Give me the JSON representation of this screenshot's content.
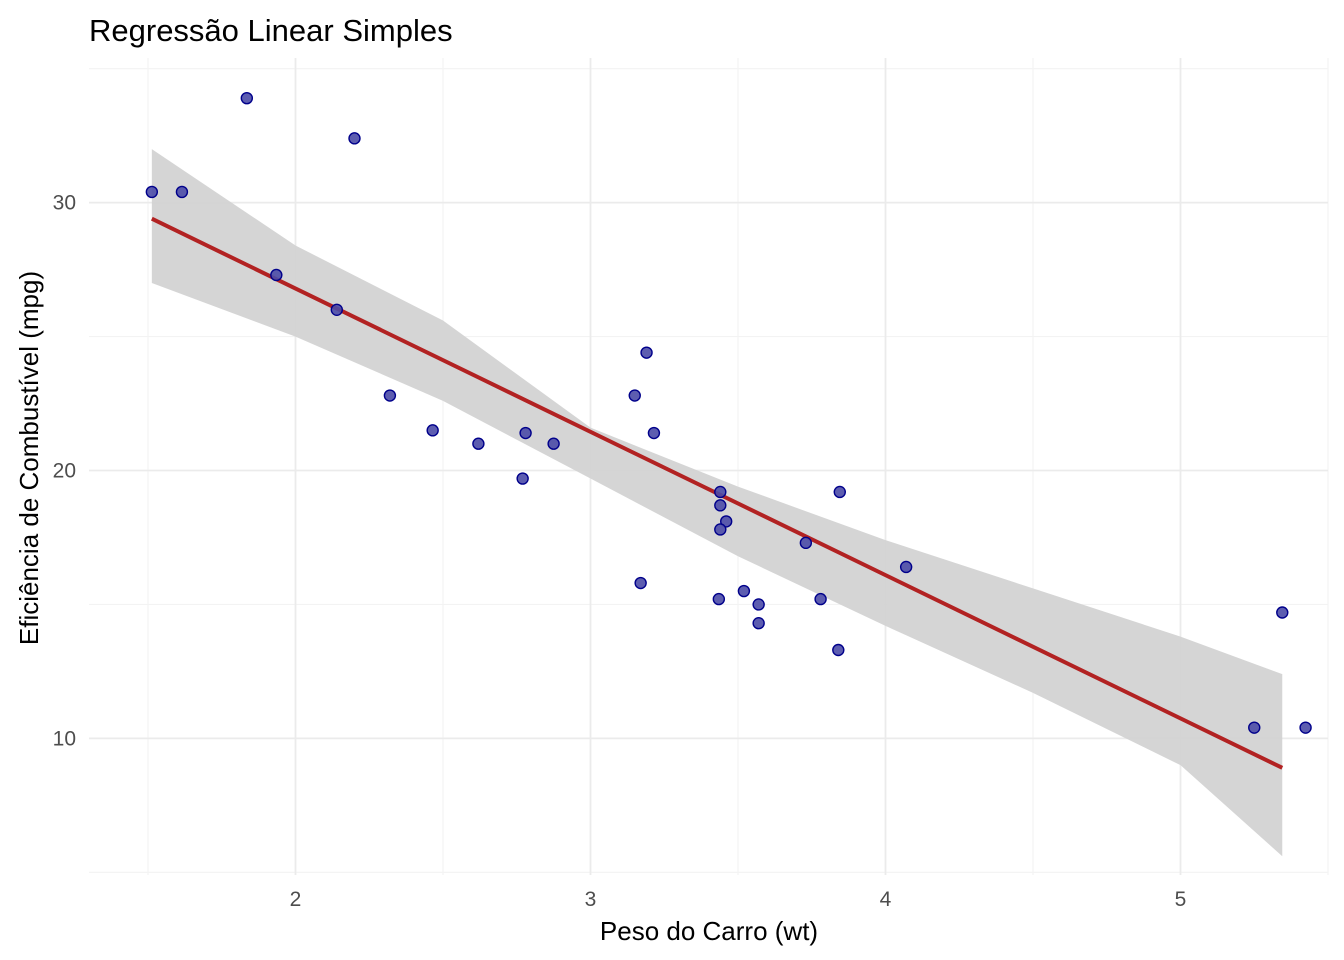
{
  "chart_data": {
    "type": "scatter",
    "title": "Regressão Linear Simples",
    "xlabel": "Peso do Carro (wt)",
    "ylabel": "Eficiência de Combustível (mpg)",
    "x_ticks": [
      2,
      3,
      4,
      5
    ],
    "y_ticks": [
      10,
      20,
      30
    ],
    "xlim": [
      1.3,
      5.5
    ],
    "ylim": [
      4.9,
      35.4
    ],
    "grid": true,
    "points": [
      {
        "x": 2.62,
        "y": 21.0
      },
      {
        "x": 2.875,
        "y": 21.0
      },
      {
        "x": 2.32,
        "y": 22.8
      },
      {
        "x": 3.215,
        "y": 21.4
      },
      {
        "x": 3.44,
        "y": 18.7
      },
      {
        "x": 3.46,
        "y": 18.1
      },
      {
        "x": 3.57,
        "y": 14.3
      },
      {
        "x": 3.19,
        "y": 24.4
      },
      {
        "x": 3.15,
        "y": 22.8
      },
      {
        "x": 3.44,
        "y": 19.2
      },
      {
        "x": 3.44,
        "y": 17.8
      },
      {
        "x": 4.07,
        "y": 16.4
      },
      {
        "x": 3.73,
        "y": 17.3
      },
      {
        "x": 3.78,
        "y": 15.2
      },
      {
        "x": 5.25,
        "y": 10.4
      },
      {
        "x": 5.424,
        "y": 10.4
      },
      {
        "x": 5.345,
        "y": 14.7
      },
      {
        "x": 2.2,
        "y": 32.4
      },
      {
        "x": 1.615,
        "y": 30.4
      },
      {
        "x": 1.835,
        "y": 33.9
      },
      {
        "x": 2.465,
        "y": 21.5
      },
      {
        "x": 3.52,
        "y": 15.5
      },
      {
        "x": 3.435,
        "y": 15.2
      },
      {
        "x": 3.84,
        "y": 13.3
      },
      {
        "x": 3.845,
        "y": 19.2
      },
      {
        "x": 1.935,
        "y": 27.3
      },
      {
        "x": 2.14,
        "y": 26.0
      },
      {
        "x": 1.513,
        "y": 30.4
      },
      {
        "x": 3.17,
        "y": 15.8
      },
      {
        "x": 2.77,
        "y": 19.7
      },
      {
        "x": 3.57,
        "y": 15.0
      },
      {
        "x": 2.78,
        "y": 21.4
      }
    ],
    "regression": {
      "x": [
        1.513,
        5.345
      ],
      "y": [
        29.4,
        8.9
      ],
      "band_x": [
        1.513,
        2.0,
        2.5,
        3.0,
        3.5,
        4.0,
        4.5,
        5.0,
        5.345
      ],
      "band_lower": [
        27.0,
        25.0,
        22.6,
        19.7,
        16.8,
        14.2,
        11.7,
        9.0,
        5.6
      ],
      "band_upper": [
        32.0,
        28.4,
        25.6,
        21.6,
        19.4,
        17.4,
        15.6,
        13.8,
        12.4
      ]
    },
    "colors": {
      "point_fill": "#4b4ba7",
      "point_stroke": "#00008b",
      "line": "#b22222",
      "band": "#d3d3d3"
    }
  }
}
